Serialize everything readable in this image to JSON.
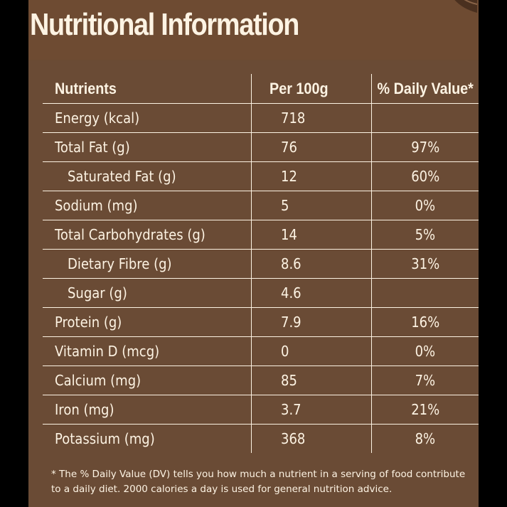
{
  "title": "Nutritional Information",
  "colors": {
    "panel": "#6b4a32",
    "text": "#fdf3e3",
    "background": "#000000"
  },
  "table": {
    "headers": [
      "Nutrients",
      "Per 100g",
      "% Daily Value*"
    ],
    "rows": [
      {
        "nutrient": "Energy (kcal)",
        "per100g": "718",
        "dv": ""
      },
      {
        "nutrient": "Total Fat (g)",
        "per100g": "76",
        "dv": "97%"
      },
      {
        "nutrient": "Saturated Fat (g)",
        "per100g": "12",
        "dv": "60%"
      },
      {
        "nutrient": "Sodium (mg)",
        "per100g": "5",
        "dv": "0%"
      },
      {
        "nutrient": "Total Carbohydrates (g)",
        "per100g": "14",
        "dv": "5%"
      },
      {
        "nutrient": "Dietary Fibre (g)",
        "per100g": "8.6",
        "dv": "31%"
      },
      {
        "nutrient": "Sugar (g)",
        "per100g": "4.6",
        "dv": ""
      },
      {
        "nutrient": "Protein (g)",
        "per100g": "7.9",
        "dv": "16%"
      },
      {
        "nutrient": "Vitamin D (mcg)",
        "per100g": "0",
        "dv": "0%"
      },
      {
        "nutrient": "Calcium (mg)",
        "per100g": "85",
        "dv": "7%"
      },
      {
        "nutrient": "Iron (mg)",
        "per100g": "3.7",
        "dv": "21%"
      },
      {
        "nutrient": "Potassium (mg)",
        "per100g": "368",
        "dv": "8%"
      }
    ]
  },
  "footnote": "* The % Daily Value (DV) tells you how much a nutrient in a serving of food contribute to a daily diet. 2000 calories a day is used for general nutrition advice."
}
